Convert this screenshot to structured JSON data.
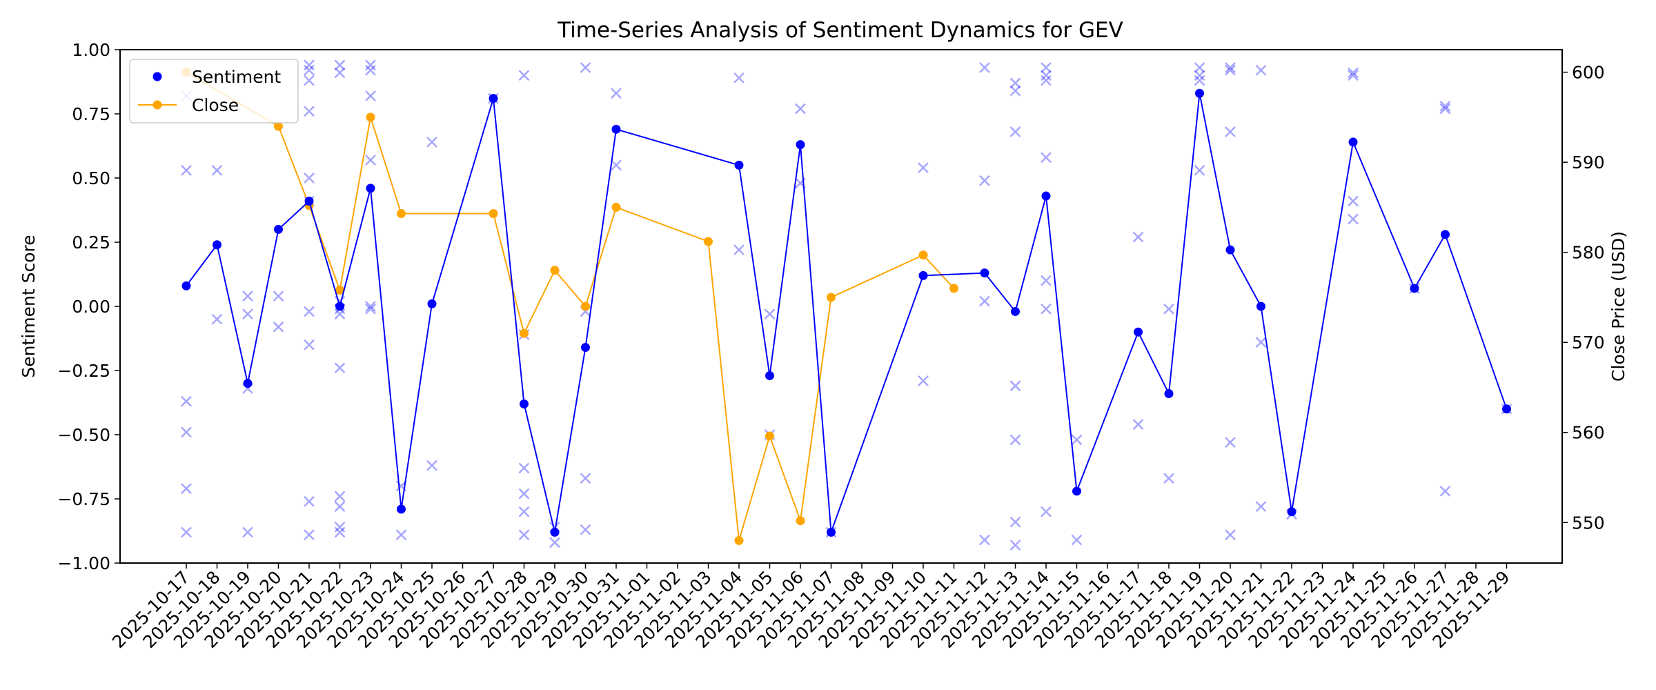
{
  "chart_data": {
    "type": "line",
    "title": "Time-Series Analysis of Sentiment Dynamics for GEV",
    "ylabel_left": "Sentiment Score",
    "ylabel_right": "Close Price (USD)",
    "ylim_left": [
      -1.0,
      1.0
    ],
    "ylim_right": [
      545.5,
      602.5
    ],
    "yticks_left": [
      "−1.00",
      "−0.75",
      "−0.50",
      "−0.25",
      "0.00",
      "0.25",
      "0.50",
      "0.75",
      "1.00"
    ],
    "yticks_right": [
      "550",
      "560",
      "570",
      "580",
      "590",
      "600"
    ],
    "legend_position": "top-left",
    "x_dates": [
      "2025-10-17",
      "2025-10-18",
      "2025-10-19",
      "2025-10-20",
      "2025-10-21",
      "2025-10-22",
      "2025-10-23",
      "2025-10-24",
      "2025-10-25",
      "2025-10-26",
      "2025-10-27",
      "2025-10-28",
      "2025-10-29",
      "2025-10-30",
      "2025-10-31",
      "2025-11-01",
      "2025-11-02",
      "2025-11-03",
      "2025-11-04",
      "2025-11-05",
      "2025-11-06",
      "2025-11-07",
      "2025-11-08",
      "2025-11-09",
      "2025-11-10",
      "2025-11-11",
      "2025-11-12",
      "2025-11-13",
      "2025-11-14",
      "2025-11-15",
      "2025-11-16",
      "2025-11-17",
      "2025-11-18",
      "2025-11-19",
      "2025-11-20",
      "2025-11-21",
      "2025-11-22",
      "2025-11-23",
      "2025-11-24",
      "2025-11-25",
      "2025-11-26",
      "2025-11-27",
      "2025-11-28",
      "2025-11-29"
    ],
    "series": [
      {
        "name": "Sentiment",
        "axis": "left",
        "color": "#0000ff",
        "points": [
          {
            "x": "2025-10-17",
            "y": 0.08
          },
          {
            "x": "2025-10-18",
            "y": 0.24
          },
          {
            "x": "2025-10-19",
            "y": -0.3
          },
          {
            "x": "2025-10-20",
            "y": 0.3
          },
          {
            "x": "2025-10-21",
            "y": 0.41
          },
          {
            "x": "2025-10-22",
            "y": 0.0
          },
          {
            "x": "2025-10-23",
            "y": 0.46
          },
          {
            "x": "2025-10-24",
            "y": -0.79
          },
          {
            "x": "2025-10-25",
            "y": 0.01
          },
          {
            "x": "2025-10-27",
            "y": 0.81
          },
          {
            "x": "2025-10-28",
            "y": -0.38
          },
          {
            "x": "2025-10-29",
            "y": -0.88
          },
          {
            "x": "2025-10-30",
            "y": -0.16
          },
          {
            "x": "2025-10-31",
            "y": 0.69
          },
          {
            "x": "2025-11-04",
            "y": 0.55
          },
          {
            "x": "2025-11-05",
            "y": -0.27
          },
          {
            "x": "2025-11-06",
            "y": 0.63
          },
          {
            "x": "2025-11-07",
            "y": -0.88
          },
          {
            "x": "2025-11-10",
            "y": 0.12
          },
          {
            "x": "2025-11-12",
            "y": 0.13
          },
          {
            "x": "2025-11-13",
            "y": -0.02
          },
          {
            "x": "2025-11-14",
            "y": 0.43
          },
          {
            "x": "2025-11-15",
            "y": -0.72
          },
          {
            "x": "2025-11-17",
            "y": -0.1
          },
          {
            "x": "2025-11-18",
            "y": -0.34
          },
          {
            "x": "2025-11-19",
            "y": 0.83
          },
          {
            "x": "2025-11-20",
            "y": 0.22
          },
          {
            "x": "2025-11-21",
            "y": 0.0
          },
          {
            "x": "2025-11-22",
            "y": -0.8
          },
          {
            "x": "2025-11-24",
            "y": 0.64
          },
          {
            "x": "2025-11-26",
            "y": 0.07
          },
          {
            "x": "2025-11-27",
            "y": 0.28
          },
          {
            "x": "2025-11-29",
            "y": -0.4
          }
        ]
      },
      {
        "name": "Close",
        "axis": "right",
        "color": "#ffa500",
        "points": [
          {
            "x": "2025-10-17",
            "y": 600.0
          },
          {
            "x": "2025-10-20",
            "y": 594.0
          },
          {
            "x": "2025-10-21",
            "y": 585.2
          },
          {
            "x": "2025-10-22",
            "y": 575.8
          },
          {
            "x": "2025-10-23",
            "y": 595.0
          },
          {
            "x": "2025-10-24",
            "y": 584.3
          },
          {
            "x": "2025-10-27",
            "y": 584.3
          },
          {
            "x": "2025-10-28",
            "y": 571.0
          },
          {
            "x": "2025-10-29",
            "y": 578.0
          },
          {
            "x": "2025-10-30",
            "y": 574.0
          },
          {
            "x": "2025-10-31",
            "y": 585.0
          },
          {
            "x": "2025-11-03",
            "y": 581.2
          },
          {
            "x": "2025-11-04",
            "y": 548.0
          },
          {
            "x": "2025-11-05",
            "y": 559.6
          },
          {
            "x": "2025-11-06",
            "y": 550.2
          },
          {
            "x": "2025-11-07",
            "y": 575.0
          },
          {
            "x": "2025-11-10",
            "y": 579.7
          },
          {
            "x": "2025-11-11",
            "y": 576.0
          }
        ]
      },
      {
        "kind": "scatter",
        "axis": "left",
        "color": "#0000ff",
        "points": [
          {
            "x": "2025-10-17",
            "y": 0.82
          },
          {
            "x": "2025-10-17",
            "y": 0.53
          },
          {
            "x": "2025-10-17",
            "y": -0.37
          },
          {
            "x": "2025-10-17",
            "y": -0.49
          },
          {
            "x": "2025-10-17",
            "y": -0.71
          },
          {
            "x": "2025-10-17",
            "y": -0.88
          },
          {
            "x": "2025-10-18",
            "y": 0.53
          },
          {
            "x": "2025-10-18",
            "y": -0.05
          },
          {
            "x": "2025-10-19",
            "y": 0.04
          },
          {
            "x": "2025-10-19",
            "y": -0.03
          },
          {
            "x": "2025-10-19",
            "y": -0.32
          },
          {
            "x": "2025-10-19",
            "y": -0.88
          },
          {
            "x": "2025-10-20",
            "y": 0.04
          },
          {
            "x": "2025-10-20",
            "y": -0.08
          },
          {
            "x": "2025-10-21",
            "y": 0.94
          },
          {
            "x": "2025-10-21",
            "y": 0.92
          },
          {
            "x": "2025-10-21",
            "y": 0.88
          },
          {
            "x": "2025-10-21",
            "y": 0.76
          },
          {
            "x": "2025-10-21",
            "y": 0.5
          },
          {
            "x": "2025-10-21",
            "y": 0.41
          },
          {
            "x": "2025-10-21",
            "y": -0.02
          },
          {
            "x": "2025-10-21",
            "y": -0.15
          },
          {
            "x": "2025-10-21",
            "y": -0.76
          },
          {
            "x": "2025-10-21",
            "y": -0.89
          },
          {
            "x": "2025-10-22",
            "y": 0.94
          },
          {
            "x": "2025-10-22",
            "y": 0.91
          },
          {
            "x": "2025-10-22",
            "y": 0.02
          },
          {
            "x": "2025-10-22",
            "y": -0.01
          },
          {
            "x": "2025-10-22",
            "y": -0.03
          },
          {
            "x": "2025-10-22",
            "y": -0.24
          },
          {
            "x": "2025-10-22",
            "y": -0.74
          },
          {
            "x": "2025-10-22",
            "y": -0.78
          },
          {
            "x": "2025-10-22",
            "y": -0.86
          },
          {
            "x": "2025-10-22",
            "y": -0.88
          },
          {
            "x": "2025-10-23",
            "y": 0.94
          },
          {
            "x": "2025-10-23",
            "y": 0.92
          },
          {
            "x": "2025-10-23",
            "y": 0.82
          },
          {
            "x": "2025-10-23",
            "y": 0.57
          },
          {
            "x": "2025-10-23",
            "y": 0.0
          },
          {
            "x": "2025-10-23",
            "y": -0.01
          },
          {
            "x": "2025-10-24",
            "y": -0.7
          },
          {
            "x": "2025-10-24",
            "y": -0.89
          },
          {
            "x": "2025-10-25",
            "y": 0.64
          },
          {
            "x": "2025-10-25",
            "y": -0.62
          },
          {
            "x": "2025-10-27",
            "y": 0.81
          },
          {
            "x": "2025-10-28",
            "y": 0.9
          },
          {
            "x": "2025-10-28",
            "y": -0.11
          },
          {
            "x": "2025-10-28",
            "y": -0.63
          },
          {
            "x": "2025-10-28",
            "y": -0.73
          },
          {
            "x": "2025-10-28",
            "y": -0.8
          },
          {
            "x": "2025-10-28",
            "y": -0.89
          },
          {
            "x": "2025-10-29",
            "y": -0.86
          },
          {
            "x": "2025-10-29",
            "y": -0.92
          },
          {
            "x": "2025-10-30",
            "y": 0.93
          },
          {
            "x": "2025-10-30",
            "y": -0.02
          },
          {
            "x": "2025-10-30",
            "y": -0.67
          },
          {
            "x": "2025-10-30",
            "y": -0.87
          },
          {
            "x": "2025-10-31",
            "y": 0.83
          },
          {
            "x": "2025-10-31",
            "y": 0.55
          },
          {
            "x": "2025-11-04",
            "y": 0.89
          },
          {
            "x": "2025-11-04",
            "y": 0.22
          },
          {
            "x": "2025-11-05",
            "y": -0.03
          },
          {
            "x": "2025-11-05",
            "y": -0.5
          },
          {
            "x": "2025-11-06",
            "y": 0.77
          },
          {
            "x": "2025-11-06",
            "y": 0.48
          },
          {
            "x": "2025-11-07",
            "y": -0.88
          },
          {
            "x": "2025-11-10",
            "y": 0.54
          },
          {
            "x": "2025-11-10",
            "y": -0.29
          },
          {
            "x": "2025-11-12",
            "y": 0.93
          },
          {
            "x": "2025-11-12",
            "y": 0.49
          },
          {
            "x": "2025-11-12",
            "y": 0.02
          },
          {
            "x": "2025-11-12",
            "y": -0.91
          },
          {
            "x": "2025-11-13",
            "y": 0.87
          },
          {
            "x": "2025-11-13",
            "y": 0.84
          },
          {
            "x": "2025-11-13",
            "y": 0.68
          },
          {
            "x": "2025-11-13",
            "y": -0.31
          },
          {
            "x": "2025-11-13",
            "y": -0.52
          },
          {
            "x": "2025-11-13",
            "y": -0.84
          },
          {
            "x": "2025-11-13",
            "y": -0.93
          },
          {
            "x": "2025-11-14",
            "y": 0.93
          },
          {
            "x": "2025-11-14",
            "y": 0.9
          },
          {
            "x": "2025-11-14",
            "y": 0.88
          },
          {
            "x": "2025-11-14",
            "y": 0.58
          },
          {
            "x": "2025-11-14",
            "y": 0.1
          },
          {
            "x": "2025-11-14",
            "y": -0.01
          },
          {
            "x": "2025-11-14",
            "y": -0.8
          },
          {
            "x": "2025-11-15",
            "y": -0.52
          },
          {
            "x": "2025-11-15",
            "y": -0.91
          },
          {
            "x": "2025-11-17",
            "y": 0.27
          },
          {
            "x": "2025-11-17",
            "y": -0.46
          },
          {
            "x": "2025-11-18",
            "y": -0.01
          },
          {
            "x": "2025-11-18",
            "y": -0.67
          },
          {
            "x": "2025-11-19",
            "y": 0.93
          },
          {
            "x": "2025-11-19",
            "y": 0.9
          },
          {
            "x": "2025-11-19",
            "y": 0.88
          },
          {
            "x": "2025-11-19",
            "y": 0.53
          },
          {
            "x": "2025-11-20",
            "y": 0.93
          },
          {
            "x": "2025-11-20",
            "y": 0.92
          },
          {
            "x": "2025-11-20",
            "y": 0.68
          },
          {
            "x": "2025-11-20",
            "y": -0.53
          },
          {
            "x": "2025-11-20",
            "y": -0.89
          },
          {
            "x": "2025-11-21",
            "y": 0.92
          },
          {
            "x": "2025-11-21",
            "y": -0.14
          },
          {
            "x": "2025-11-21",
            "y": -0.78
          },
          {
            "x": "2025-11-22",
            "y": -0.81
          },
          {
            "x": "2025-11-24",
            "y": 0.91
          },
          {
            "x": "2025-11-24",
            "y": 0.9
          },
          {
            "x": "2025-11-24",
            "y": 0.41
          },
          {
            "x": "2025-11-24",
            "y": 0.34
          },
          {
            "x": "2025-11-26",
            "y": 0.07
          },
          {
            "x": "2025-11-27",
            "y": 0.78
          },
          {
            "x": "2025-11-27",
            "y": 0.77
          },
          {
            "x": "2025-11-27",
            "y": -0.72
          },
          {
            "x": "2025-11-29",
            "y": -0.4
          }
        ]
      }
    ]
  }
}
